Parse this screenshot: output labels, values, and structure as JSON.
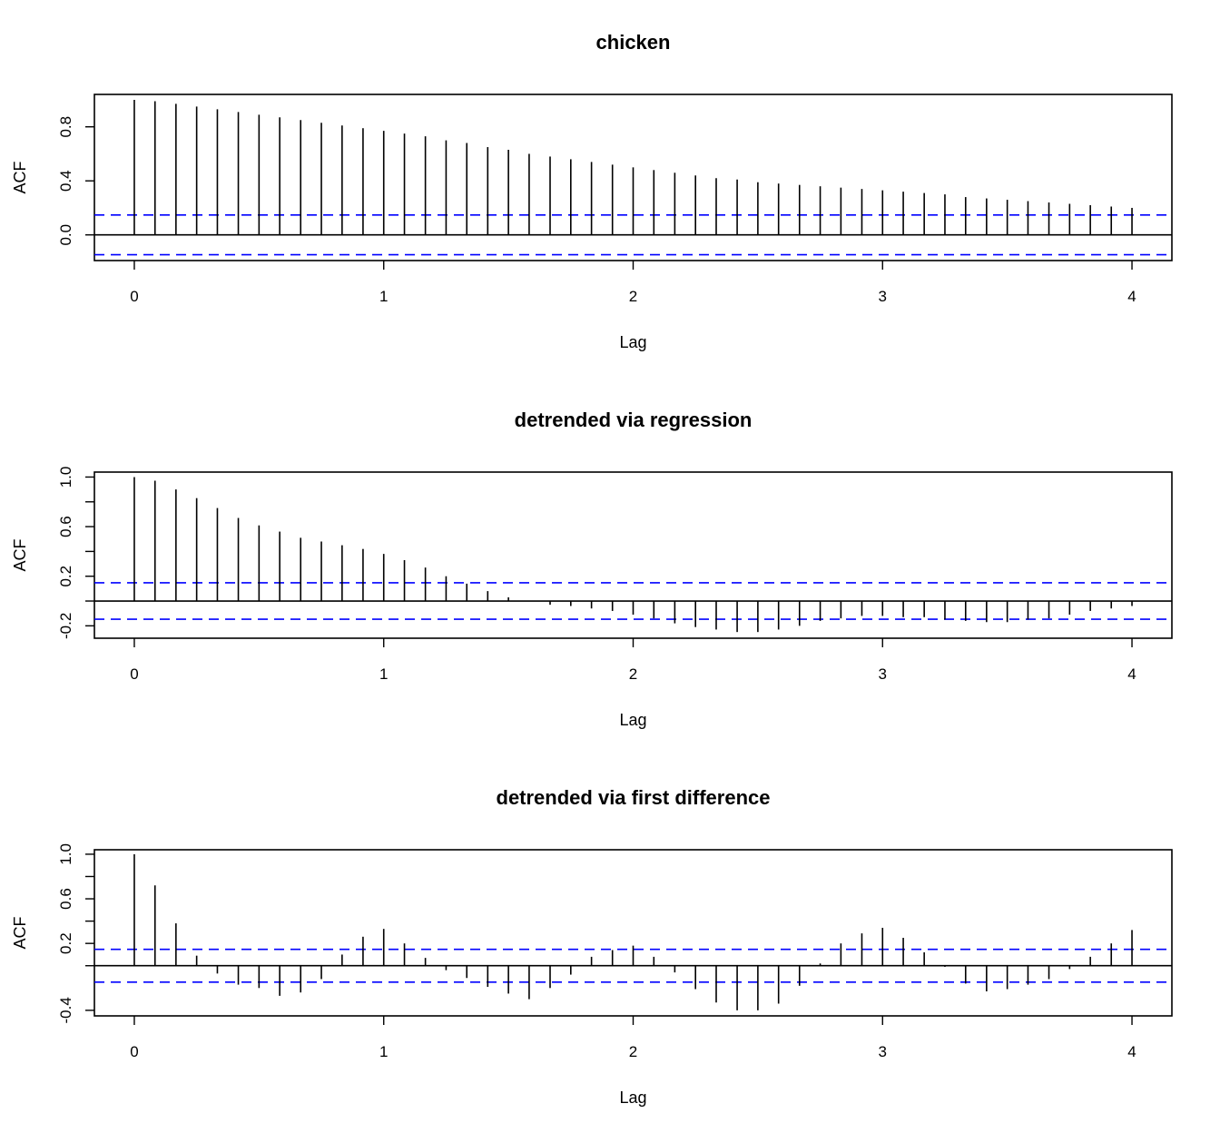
{
  "chart_data": [
    {
      "type": "bar",
      "title": "chicken",
      "xlabel": "Lag",
      "ylabel": "ACF",
      "xlim": [
        -0.16,
        4.16
      ],
      "ylim": [
        -0.19,
        1.04
      ],
      "xticks": [
        0,
        1,
        2,
        3,
        4
      ],
      "yticks": [
        0.0,
        0.4,
        0.8
      ],
      "ytick_labels": [
        "0.0",
        "0.4",
        "0.8"
      ],
      "lag_step": 0.0833,
      "ci_bounds": [
        0.147,
        -0.147
      ],
      "grid": false,
      "colors": {
        "bars": "#000000",
        "ci": "#0000ff"
      },
      "lags": [
        0,
        0.083,
        0.167,
        0.25,
        0.333,
        0.417,
        0.5,
        0.583,
        0.667,
        0.75,
        0.833,
        0.917,
        1,
        1.083,
        1.167,
        1.25,
        1.333,
        1.417,
        1.5,
        1.583,
        1.667,
        1.75,
        1.833,
        1.917,
        2,
        2.083,
        2.167,
        2.25,
        2.333,
        2.417,
        2.5,
        2.583,
        2.667,
        2.75,
        2.833,
        2.917,
        3,
        3.083,
        3.167,
        3.25,
        3.333,
        3.417,
        3.5,
        3.583,
        3.667,
        3.75,
        3.833,
        3.917,
        4
      ],
      "values": [
        1.0,
        0.99,
        0.97,
        0.95,
        0.93,
        0.91,
        0.89,
        0.87,
        0.85,
        0.83,
        0.81,
        0.79,
        0.77,
        0.75,
        0.73,
        0.7,
        0.68,
        0.65,
        0.63,
        0.6,
        0.58,
        0.56,
        0.54,
        0.52,
        0.5,
        0.48,
        0.46,
        0.44,
        0.42,
        0.41,
        0.39,
        0.38,
        0.37,
        0.36,
        0.35,
        0.34,
        0.33,
        0.32,
        0.31,
        0.3,
        0.28,
        0.27,
        0.26,
        0.25,
        0.24,
        0.23,
        0.22,
        0.21,
        0.2
      ]
    },
    {
      "type": "bar",
      "title": "detrended via regression",
      "xlabel": "Lag",
      "ylabel": "ACF",
      "xlim": [
        -0.16,
        4.16
      ],
      "ylim": [
        -0.3,
        1.04
      ],
      "xticks": [
        0,
        1,
        2,
        3,
        4
      ],
      "yticks": [
        -0.2,
        0.2,
        0.6,
        1.0
      ],
      "ytick_labels": [
        "-0.2",
        "0.2",
        "0.6",
        "1.0"
      ],
      "minor_yticks": [
        0.0,
        0.4,
        0.8
      ],
      "lag_step": 0.0833,
      "ci_bounds": [
        0.147,
        -0.147
      ],
      "grid": false,
      "colors": {
        "bars": "#000000",
        "ci": "#0000ff"
      },
      "lags": [
        0,
        0.083,
        0.167,
        0.25,
        0.333,
        0.417,
        0.5,
        0.583,
        0.667,
        0.75,
        0.833,
        0.917,
        1,
        1.083,
        1.167,
        1.25,
        1.333,
        1.417,
        1.5,
        1.583,
        1.667,
        1.75,
        1.833,
        1.917,
        2,
        2.083,
        2.167,
        2.25,
        2.333,
        2.417,
        2.5,
        2.583,
        2.667,
        2.75,
        2.833,
        2.917,
        3,
        3.083,
        3.167,
        3.25,
        3.333,
        3.417,
        3.5,
        3.583,
        3.667,
        3.75,
        3.833,
        3.917,
        4
      ],
      "values": [
        1.0,
        0.97,
        0.9,
        0.83,
        0.75,
        0.67,
        0.61,
        0.56,
        0.51,
        0.48,
        0.45,
        0.42,
        0.38,
        0.33,
        0.27,
        0.2,
        0.14,
        0.08,
        0.03,
        0.0,
        -0.03,
        -0.04,
        -0.06,
        -0.08,
        -0.11,
        -0.14,
        -0.18,
        -0.21,
        -0.23,
        -0.25,
        -0.25,
        -0.23,
        -0.2,
        -0.16,
        -0.14,
        -0.12,
        -0.12,
        -0.13,
        -0.13,
        -0.15,
        -0.16,
        -0.17,
        -0.17,
        -0.15,
        -0.14,
        -0.11,
        -0.08,
        -0.06,
        -0.04
      ]
    },
    {
      "type": "bar",
      "title": "detrended via first difference",
      "xlabel": "Lag",
      "ylabel": "ACF",
      "xlim": [
        -0.16,
        4.16
      ],
      "ylim": [
        -0.45,
        1.04
      ],
      "xticks": [
        0,
        1,
        2,
        3,
        4
      ],
      "yticks": [
        -0.4,
        0.2,
        0.6,
        1.0
      ],
      "ytick_labels": [
        "-0.4",
        "0.2",
        "0.6",
        "1.0"
      ],
      "minor_yticks": [
        0.0,
        0.4,
        0.8
      ],
      "lag_step": 0.0833,
      "ci_bounds": [
        0.147,
        -0.147
      ],
      "grid": false,
      "colors": {
        "bars": "#000000",
        "ci": "#0000ff"
      },
      "lags": [
        0,
        0.083,
        0.167,
        0.25,
        0.333,
        0.417,
        0.5,
        0.583,
        0.667,
        0.75,
        0.833,
        0.917,
        1,
        1.083,
        1.167,
        1.25,
        1.333,
        1.417,
        1.5,
        1.583,
        1.667,
        1.75,
        1.833,
        1.917,
        2,
        2.083,
        2.167,
        2.25,
        2.333,
        2.417,
        2.5,
        2.583,
        2.667,
        2.75,
        2.833,
        2.917,
        3,
        3.083,
        3.167,
        3.25,
        3.333,
        3.417,
        3.5,
        3.583,
        3.667,
        3.75,
        3.833,
        3.917,
        4
      ],
      "values": [
        1.0,
        0.72,
        0.38,
        0.09,
        -0.07,
        -0.17,
        -0.2,
        -0.27,
        -0.24,
        -0.12,
        0.1,
        0.26,
        0.33,
        0.2,
        0.07,
        -0.04,
        -0.11,
        -0.19,
        -0.25,
        -0.3,
        -0.2,
        -0.08,
        0.08,
        0.14,
        0.18,
        0.08,
        -0.06,
        -0.21,
        -0.33,
        -0.4,
        -0.4,
        -0.34,
        -0.18,
        0.02,
        0.2,
        0.29,
        0.34,
        0.25,
        0.12,
        -0.01,
        -0.16,
        -0.23,
        -0.21,
        -0.17,
        -0.12,
        -0.03,
        0.08,
        0.2,
        0.32
      ]
    }
  ]
}
